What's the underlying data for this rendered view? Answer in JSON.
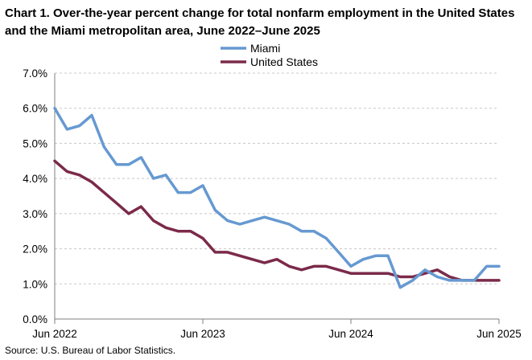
{
  "chart_data": {
    "type": "line",
    "title": "Chart 1. Over-the-year percent change for total nonfarm employment in the United States and the Miami metropolitan area, June 2022–June 2025",
    "xlabel": "",
    "ylabel": "",
    "ylim": [
      0,
      7
    ],
    "yticks": [
      0,
      1,
      2,
      3,
      4,
      5,
      6,
      7
    ],
    "ytick_labels": [
      "0.0%",
      "1.0%",
      "2.0%",
      "3.0%",
      "4.0%",
      "5.0%",
      "6.0%",
      "7.0%"
    ],
    "xtick_labels": [
      "Jun 2022",
      "Jun 2023",
      "Jun 2024",
      "Jun 2025"
    ],
    "xtick_indices": [
      0,
      12,
      24,
      36
    ],
    "grid": true,
    "legend_position": "top-center",
    "x": [
      "Jun 2022",
      "Jul 2022",
      "Aug 2022",
      "Sep 2022",
      "Oct 2022",
      "Nov 2022",
      "Dec 2022",
      "Jan 2023",
      "Feb 2023",
      "Mar 2023",
      "Apr 2023",
      "May 2023",
      "Jun 2023",
      "Jul 2023",
      "Aug 2023",
      "Sep 2023",
      "Oct 2023",
      "Nov 2023",
      "Dec 2023",
      "Jan 2024",
      "Feb 2024",
      "Mar 2024",
      "Apr 2024",
      "May 2024",
      "Jun 2024",
      "Jul 2024",
      "Aug 2024",
      "Sep 2024",
      "Oct 2024",
      "Nov 2024",
      "Dec 2024",
      "Jan 2025",
      "Feb 2025",
      "Mar 2025",
      "Apr 2025",
      "May 2025",
      "Jun 2025"
    ],
    "series": [
      {
        "name": "Miami",
        "color": "#6699d1",
        "values": [
          6.0,
          5.4,
          5.5,
          5.8,
          4.9,
          4.4,
          4.4,
          4.6,
          4.0,
          4.1,
          3.6,
          3.6,
          3.8,
          3.1,
          2.8,
          2.7,
          2.8,
          2.9,
          2.8,
          2.7,
          2.5,
          2.5,
          2.3,
          1.9,
          1.5,
          1.7,
          1.8,
          1.8,
          0.9,
          1.1,
          1.4,
          1.2,
          1.1,
          1.1,
          1.1,
          1.5,
          1.5
        ]
      },
      {
        "name": "United States",
        "color": "#7b2a4a",
        "values": [
          4.5,
          4.2,
          4.1,
          3.9,
          3.6,
          3.3,
          3.0,
          3.2,
          2.8,
          2.6,
          2.5,
          2.5,
          2.3,
          1.9,
          1.9,
          1.8,
          1.7,
          1.6,
          1.7,
          1.5,
          1.4,
          1.5,
          1.5,
          1.4,
          1.3,
          1.3,
          1.3,
          1.3,
          1.2,
          1.2,
          1.3,
          1.4,
          1.2,
          1.1,
          1.1,
          1.1,
          1.1
        ]
      }
    ]
  },
  "source": "Source: U.S. Bureau of Labor Statistics.",
  "colors": {
    "grid": "#c8c8c8",
    "axis": "#7f7f7f"
  }
}
